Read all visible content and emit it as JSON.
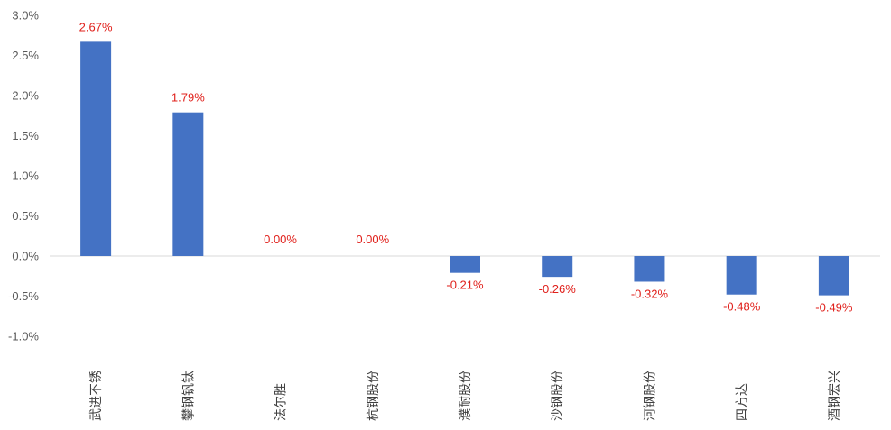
{
  "chart_data": {
    "type": "bar",
    "categories": [
      "武进不锈",
      "攀钢钒钛",
      "法尔胜",
      "杭钢股份",
      "濮耐股份",
      "沙钢股份",
      "河钢股份",
      "四方达",
      "酒钢宏兴"
    ],
    "values": [
      2.67,
      1.79,
      0.0,
      0.0,
      -0.21,
      -0.26,
      -0.32,
      -0.48,
      -0.49
    ],
    "value_labels": [
      "2.67%",
      "1.79%",
      "0.00%",
      "0.00%",
      "-0.21%",
      "-0.26%",
      "-0.32%",
      "-0.48%",
      "-0.49%"
    ],
    "y_ticks": [
      3.0,
      2.5,
      2.0,
      1.5,
      1.0,
      0.5,
      0.0,
      -0.5,
      -1.0
    ],
    "y_tick_labels": [
      "3.0%",
      "2.5%",
      "2.0%",
      "1.5%",
      "1.0%",
      "0.5%",
      "0.0%",
      "-0.5%",
      "-1.0%"
    ],
    "ylim": [
      -1.0,
      3.0
    ],
    "grid": false,
    "legend": "none",
    "title": "",
    "xlabel": "",
    "ylabel": "",
    "colors": {
      "bar": "#4472C4",
      "data_label": "#E0201B",
      "axis": "#D9D9D9",
      "tick_text": "#595959",
      "category_text": "#404040"
    }
  }
}
